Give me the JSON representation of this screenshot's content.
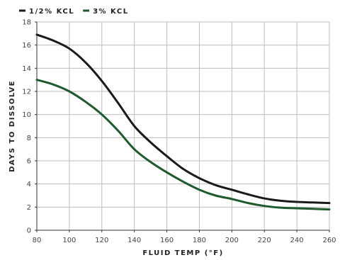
{
  "chart_data": {
    "type": "line",
    "title": "",
    "xlabel": "FLUID TEMP (°F)",
    "ylabel": "DAYS TO DISSOLVE",
    "xlim": [
      80,
      260
    ],
    "ylim": [
      0,
      18
    ],
    "x_ticks": [
      80,
      100,
      120,
      140,
      160,
      180,
      200,
      220,
      240,
      260
    ],
    "y_ticks": [
      0,
      2,
      4,
      6,
      8,
      10,
      12,
      14,
      16,
      18
    ],
    "grid": true,
    "legend_position": "top-left",
    "series": [
      {
        "name": "1/2% KCL",
        "color": "#1a1a1a",
        "x": [
          80,
          90,
          100,
          110,
          120,
          130,
          140,
          150,
          160,
          170,
          180,
          190,
          200,
          210,
          220,
          230,
          240,
          250,
          260
        ],
        "y": [
          16.9,
          16.4,
          15.7,
          14.5,
          12.9,
          11.0,
          9.0,
          7.6,
          6.4,
          5.3,
          4.5,
          3.9,
          3.5,
          3.1,
          2.75,
          2.55,
          2.45,
          2.4,
          2.35
        ]
      },
      {
        "name": "3% KCL",
        "color": "#1f5a2e",
        "x": [
          80,
          90,
          100,
          110,
          120,
          130,
          140,
          150,
          160,
          170,
          180,
          190,
          200,
          210,
          220,
          230,
          240,
          250,
          260
        ],
        "y": [
          13.0,
          12.6,
          12.0,
          11.1,
          10.0,
          8.6,
          7.0,
          5.9,
          5.0,
          4.2,
          3.5,
          3.0,
          2.7,
          2.35,
          2.1,
          1.95,
          1.9,
          1.85,
          1.8
        ]
      }
    ]
  }
}
